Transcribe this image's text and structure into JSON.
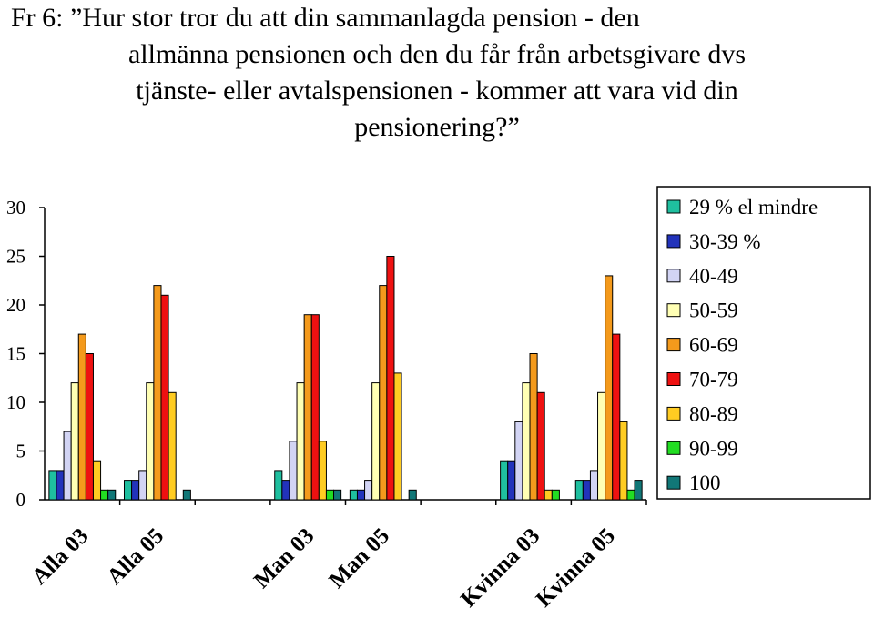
{
  "chart_data": {
    "type": "bar",
    "title_lines": [
      "Fr 6: ”Hur stor tror du att din sammanlagda pension - den",
      "allmänna pensionen och den du får från arbetsgivare dvs",
      "tjänste- eller avtalspensionen - kommer att vara vid din",
      "pensionering?”"
    ],
    "categories": [
      "Alla 03",
      "Alla 05",
      "",
      "Man 03",
      "Man 05",
      "",
      "Kvinna 03",
      "Kvinna 05"
    ],
    "ylim": [
      0,
      30
    ],
    "yticks": [
      "0",
      "5",
      "10",
      "15",
      "20",
      "25",
      "30"
    ],
    "grid": false,
    "legend_position": "right",
    "series": [
      {
        "name": "29 % el mindre",
        "color": "#1fbf9f",
        "values": [
          3,
          2,
          null,
          3,
          1,
          null,
          4,
          2
        ]
      },
      {
        "name": "30-39 %",
        "color": "#2233bb",
        "values": [
          3,
          2,
          null,
          2,
          1,
          null,
          4,
          2
        ]
      },
      {
        "name": "40-49",
        "color": "#d2d4f4",
        "values": [
          7,
          3,
          null,
          6,
          2,
          null,
          8,
          3
        ]
      },
      {
        "name": "50-59",
        "color": "#ffffb4",
        "values": [
          12,
          12,
          null,
          12,
          12,
          null,
          12,
          11
        ]
      },
      {
        "name": "60-69",
        "color": "#f49a1c",
        "values": [
          17,
          22,
          null,
          19,
          22,
          null,
          15,
          23
        ]
      },
      {
        "name": "70-79",
        "color": "#ee1111",
        "values": [
          15,
          21,
          null,
          19,
          25,
          null,
          11,
          17
        ]
      },
      {
        "name": "80-89",
        "color": "#ffcc22",
        "values": [
          4,
          11,
          null,
          6,
          13,
          null,
          1,
          8
        ]
      },
      {
        "name": "90-99",
        "color": "#22dd22",
        "values": [
          1,
          0,
          null,
          1,
          0,
          null,
          1,
          1
        ]
      },
      {
        "name": "100",
        "color": "#117777",
        "values": [
          1,
          1,
          null,
          1,
          1,
          null,
          0,
          2
        ]
      }
    ]
  }
}
